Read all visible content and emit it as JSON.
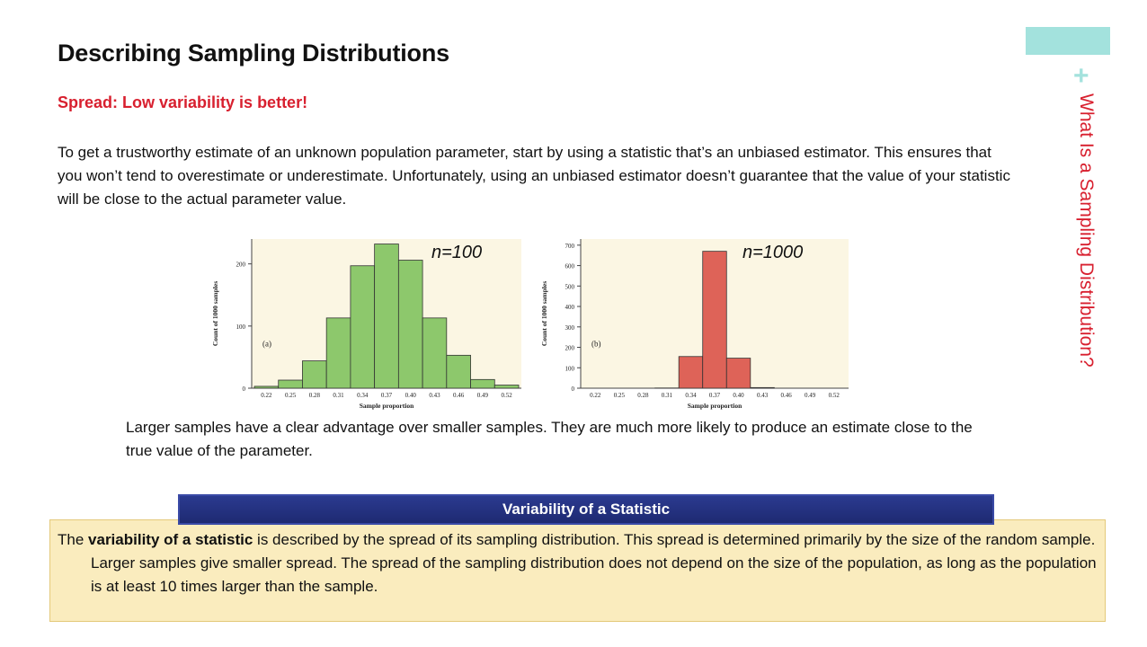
{
  "slide": {
    "title": "Describing Sampling Distributions",
    "subtitle": "Spread: Low variability is better!",
    "intro": "To get a trustworthy estimate of an unknown population parameter, start by using a statistic that’s an unbiased estimator. This ensures that you won’t tend to overestimate or underestimate. Unfortunately, using an unbiased estimator doesn’t guarantee that the value of your statistic will be close to the actual parameter value.",
    "side_title": "What Is a Sampling Distribution?",
    "side_plus": "+",
    "caption": "Larger samples have a clear advantage over smaller samples. They are much more likely to produce an estimate close to the true value of the parameter.",
    "definition": {
      "header": "Variability of a Statistic",
      "lead": "The ",
      "term": "variability of a statistic",
      "body": " is described by the spread of its sampling distribution. This spread is determined primarily by the size of the random sample. Larger samples give smaller spread. The spread of the sampling distribution does not depend on the size of the population, as long as the population is at least 10 times larger than the sample."
    }
  },
  "colors": {
    "accent": "#a3e2dd",
    "red_text": "#d8202f",
    "chart_bg": "#fbf6e3",
    "green_bar": "#8dc86c",
    "red_bar": "#de6358",
    "box_fill": "#faecbe",
    "header_fill": "#223080"
  },
  "chart_data": [
    {
      "type": "bar",
      "panel": "(a)",
      "n_label": "n=100",
      "categories": [
        "0.22",
        "0.25",
        "0.28",
        "0.31",
        "0.34",
        "0.37",
        "0.40",
        "0.43",
        "0.46",
        "0.49",
        "0.52"
      ],
      "values": [
        3,
        13,
        44,
        113,
        197,
        232,
        206,
        113,
        53,
        14,
        5
      ],
      "yticks": [
        0,
        100,
        200
      ],
      "ylim": [
        0,
        240
      ],
      "xlabel": "Sample proportion",
      "ylabel": "Count of 1000 samples",
      "color": "#8dc86c"
    },
    {
      "type": "bar",
      "panel": "(b)",
      "n_label": "n=1000",
      "categories": [
        "0.22",
        "0.25",
        "0.28",
        "0.31",
        "0.34",
        "0.37",
        "0.40",
        "0.43",
        "0.46",
        "0.49",
        "0.52"
      ],
      "values": [
        0,
        0,
        0,
        1,
        155,
        670,
        147,
        3,
        0,
        0,
        0
      ],
      "yticks": [
        0,
        100,
        200,
        300,
        400,
        500,
        600,
        700
      ],
      "ylim": [
        0,
        730
      ],
      "xlabel": "Sample proportion",
      "ylabel": "Count of 1000 samples",
      "color": "#de6358"
    }
  ]
}
